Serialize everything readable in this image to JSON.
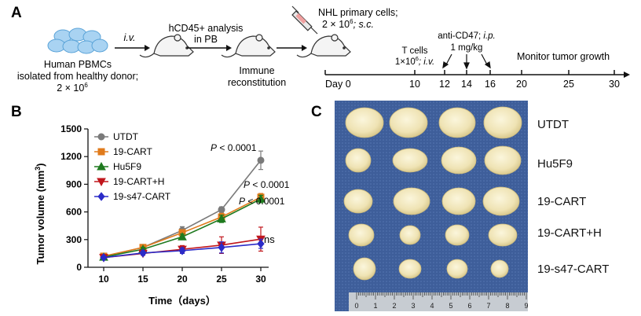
{
  "panel_a": {
    "letter": "A",
    "pbmc_label_1": "Human PBMCs",
    "pbmc_label_2": "isolated from healthy donor;",
    "pbmc_dose": "2 × 10",
    "pbmc_dose_exp": "6",
    "iv_label": "i.v.",
    "analysis_label_1": "hCD45+ analysis",
    "analysis_label_2": "in PB",
    "reconstitution_label_1": "Immune",
    "reconstitution_label_2": "reconstitution",
    "nhl_label_1": "NHL primary cells;",
    "nhl_label_2_prefix": "2 × 10",
    "nhl_label_2_exp": "6",
    "nhl_label_2_suffix": "; s.c.",
    "tcells_label_1": "T cells",
    "tcells_label_2_prefix": "1×10",
    "tcells_label_2_exp": "6",
    "tcells_label_2_suffix": "; i.v.",
    "anticd47_label_1": "anti-CD47; i.p.",
    "anticd47_label_2": "1 mg/kg",
    "monitor_label": "Monitor tumor growth",
    "day0_label": "Day 0",
    "timeline_days": [
      "10",
      "12",
      "14",
      "16",
      "20",
      "25",
      "30"
    ]
  },
  "panel_b": {
    "letter": "B",
    "ylabel": "Tumor volume (mm",
    "ylabel_exp": "3",
    "ylabel_close": ")",
    "xlabel": "Time（days）",
    "pvalues": [
      "P < 0.0001",
      "P < 0.0001",
      "P < 0.0001"
    ],
    "p_italic": "P",
    "p_rest": " < 0.0001",
    "ns_label": "ns"
  },
  "chart_data": {
    "type": "line",
    "x": [
      10,
      15,
      20,
      25,
      30
    ],
    "xlabel": "Time（days）",
    "ylabel": "Tumor volume (mm3)",
    "xlim": [
      8,
      31
    ],
    "ylim": [
      0,
      1500
    ],
    "xticks": [
      10,
      15,
      20,
      25,
      30
    ],
    "yticks": [
      0,
      300,
      600,
      900,
      1200,
      1500
    ],
    "legend_position": "top-left",
    "series": [
      {
        "name": "UTDT",
        "color": "#7a7a7a",
        "marker": "circle",
        "values": [
          115,
          215,
          400,
          625,
          1160
        ],
        "err": [
          15,
          25,
          40,
          30,
          100
        ]
      },
      {
        "name": "19-CART",
        "color": "#e07b1c",
        "marker": "square",
        "values": [
          120,
          215,
          375,
          545,
          760
        ],
        "err": [
          15,
          20,
          30,
          40,
          40
        ]
      },
      {
        "name": "Hu5F9",
        "color": "#1f7a1f",
        "marker": "triangle-up",
        "values": [
          110,
          195,
          330,
          525,
          740
        ],
        "err": [
          10,
          20,
          30,
          40,
          40
        ]
      },
      {
        "name": "19-CART+H",
        "color": "#c0161c",
        "marker": "triangle-down",
        "values": [
          105,
          150,
          195,
          240,
          305
        ],
        "err": [
          10,
          20,
          40,
          90,
          130
        ]
      },
      {
        "name": "19-s47-CART",
        "color": "#2b2bc8",
        "marker": "diamond",
        "values": [
          105,
          155,
          180,
          215,
          255
        ],
        "err": [
          10,
          20,
          30,
          60,
          50
        ]
      }
    ]
  },
  "panel_c": {
    "letter": "C",
    "row_labels": [
      "UTDT",
      "Hu5F9",
      "19-CART",
      "19-CART+H",
      "19-s47-CART"
    ],
    "ruler_numbers": [
      "0",
      "1",
      "2",
      "3",
      "4",
      "5",
      "6",
      "7",
      "8",
      "9"
    ]
  }
}
